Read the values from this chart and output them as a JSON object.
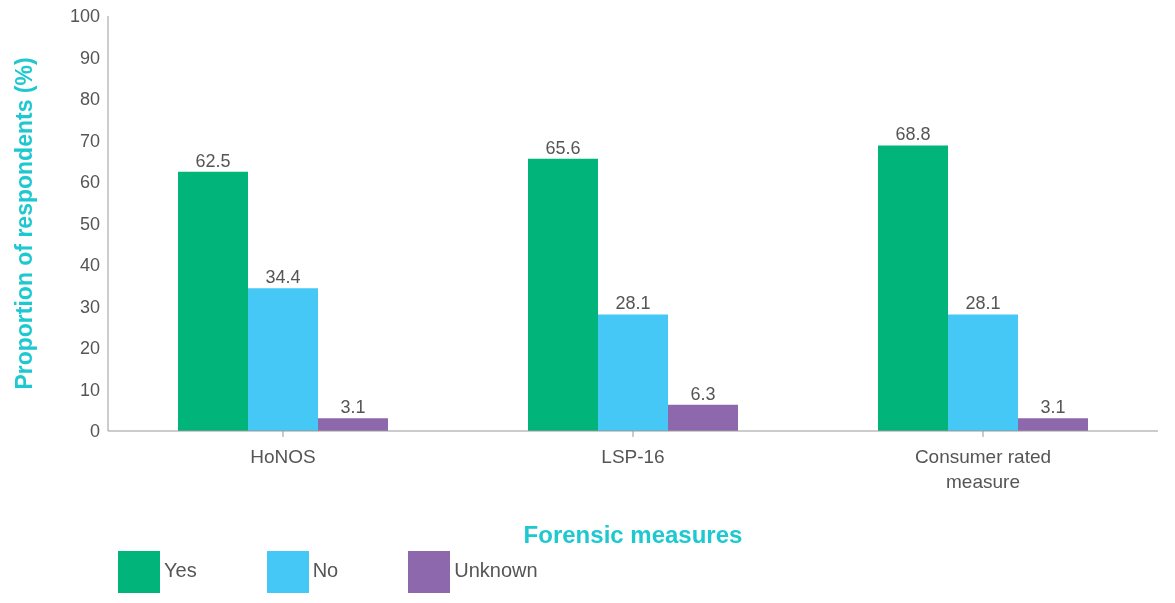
{
  "chart_data": {
    "type": "bar",
    "xlabel": "Forensic measures",
    "ylabel": "Proportion of respondents (%)",
    "categories": [
      "HoNOS",
      "LSP-16",
      "Consumer rated measure"
    ],
    "series": [
      {
        "name": "Yes",
        "color": "#00b47a",
        "values": [
          62.5,
          65.6,
          68.8
        ]
      },
      {
        "name": "No",
        "color": "#45c8f5",
        "values": [
          34.4,
          28.1,
          28.1
        ]
      },
      {
        "name": "Unknown",
        "color": "#8e68ad",
        "values": [
          3.1,
          6.3,
          3.1
        ]
      }
    ],
    "ylim": [
      0,
      100
    ],
    "yticks": [
      0,
      10,
      20,
      30,
      40,
      50,
      60,
      70,
      80,
      90,
      100
    ],
    "grid": false,
    "legend": "bottom left",
    "data_labels": true
  }
}
